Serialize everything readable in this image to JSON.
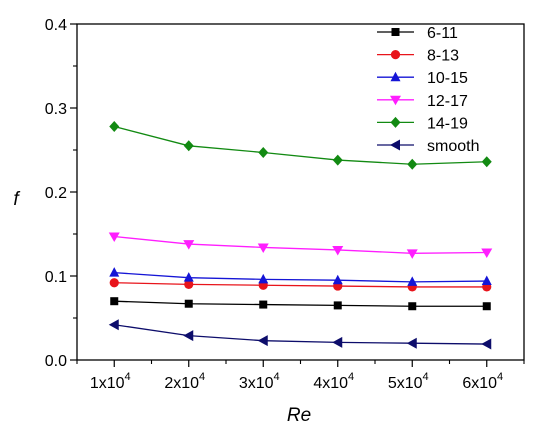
{
  "chart_data": {
    "type": "line",
    "xlabel": "Re",
    "ylabel": "f",
    "x": [
      10000,
      20000,
      30000,
      40000,
      50000,
      60000
    ],
    "x_tick_labels": [
      {
        "base": "1x10",
        "exp": "4"
      },
      {
        "base": "2x10",
        "exp": "4"
      },
      {
        "base": "3x10",
        "exp": "4"
      },
      {
        "base": "4x10",
        "exp": "4"
      },
      {
        "base": "5x10",
        "exp": "4"
      },
      {
        "base": "6x10",
        "exp": "4"
      }
    ],
    "y_ticks": [
      0.0,
      0.1,
      0.2,
      0.3,
      0.4
    ],
    "y_tick_labels": [
      "0.0",
      "0.1",
      "0.2",
      "0.3",
      "0.4"
    ],
    "xlim": [
      5000,
      65000
    ],
    "ylim": [
      0,
      0.4
    ],
    "grid": false,
    "legend_position": "top-right",
    "series": [
      {
        "name": "6-11",
        "marker": "square",
        "color": "#000000",
        "values": [
          0.07,
          0.067,
          0.066,
          0.065,
          0.064,
          0.064
        ]
      },
      {
        "name": "8-13",
        "marker": "circle",
        "color": "#e8141b",
        "values": [
          0.092,
          0.09,
          0.089,
          0.088,
          0.087,
          0.087
        ]
      },
      {
        "name": "10-15",
        "marker": "triangle-up",
        "color": "#1515d6",
        "values": [
          0.104,
          0.098,
          0.096,
          0.095,
          0.093,
          0.094
        ]
      },
      {
        "name": "12-17",
        "marker": "triangle-down",
        "color": "#ff1eff",
        "values": [
          0.147,
          0.138,
          0.134,
          0.131,
          0.127,
          0.128
        ]
      },
      {
        "name": "14-19",
        "marker": "diamond",
        "color": "#128a12",
        "values": [
          0.278,
          0.255,
          0.247,
          0.238,
          0.233,
          0.236
        ]
      },
      {
        "name": "smooth",
        "marker": "triangle-left",
        "color": "#0d0d6b",
        "values": [
          0.042,
          0.029,
          0.023,
          0.021,
          0.02,
          0.019
        ]
      }
    ]
  }
}
